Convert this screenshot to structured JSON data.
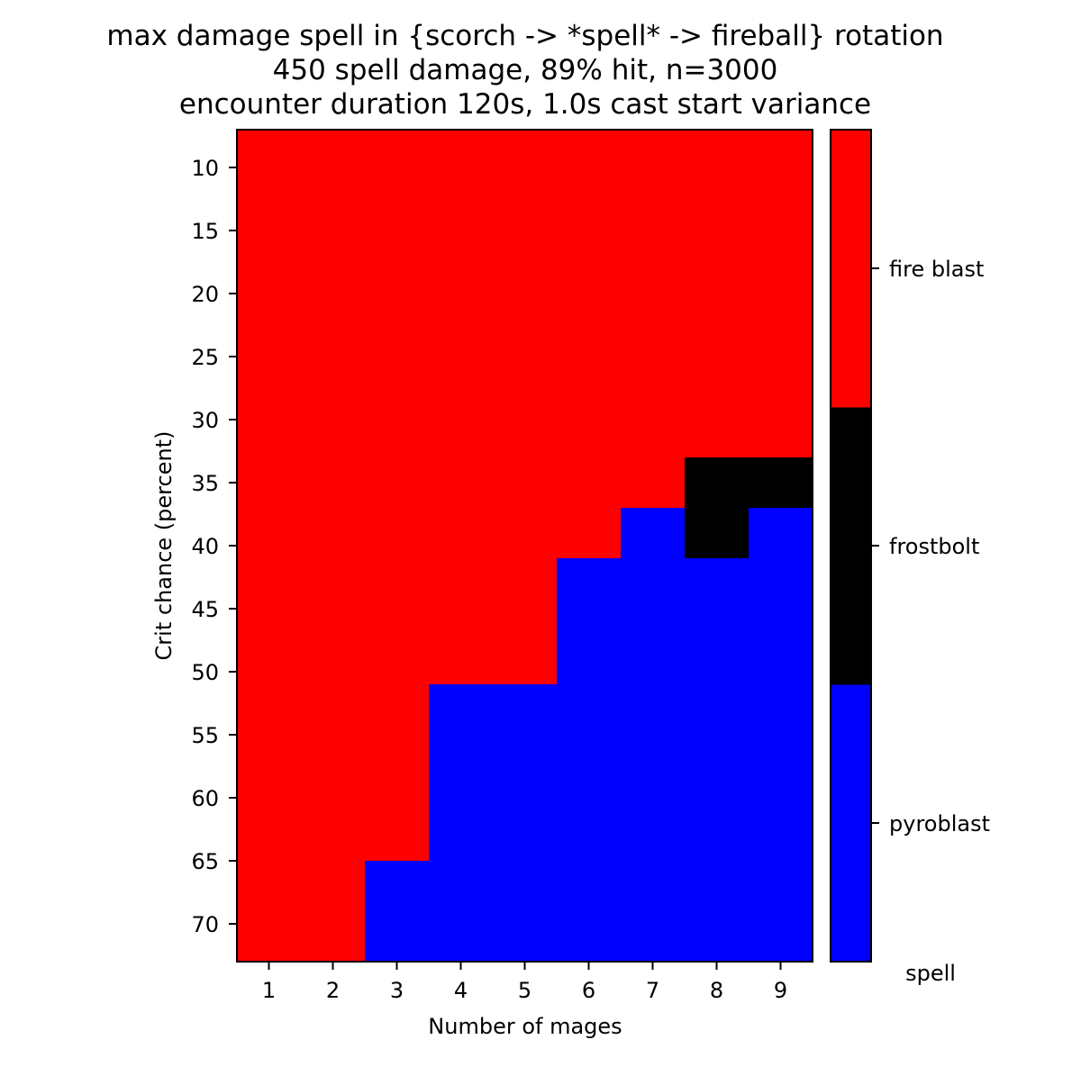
{
  "chart_data": {
    "type": "heatmap",
    "title_lines": [
      "max damage spell in {scorch -> *spell* -> fireball} rotation",
      "450  spell damage, 89% hit, n=3000",
      "encounter duration 120s, 1.0s cast start variance"
    ],
    "xlabel": "Number of mages",
    "ylabel": "Crit chance (percent)",
    "x": [
      1,
      2,
      3,
      4,
      5,
      6,
      7,
      8,
      9
    ],
    "y": [
      8,
      10,
      12,
      14,
      16,
      18,
      20,
      22,
      24,
      26,
      28,
      30,
      32,
      34,
      36,
      38,
      40,
      42,
      44,
      46,
      48,
      50,
      52,
      54,
      56,
      58,
      60,
      62,
      64,
      66,
      68,
      70,
      72
    ],
    "xticks": [
      1,
      2,
      3,
      4,
      5,
      6,
      7,
      8,
      9
    ],
    "yticks": [
      10,
      15,
      20,
      25,
      30,
      35,
      40,
      45,
      50,
      55,
      60,
      65,
      70
    ],
    "category_names": [
      "pyroblast",
      "frostbolt",
      "fire blast"
    ],
    "category_colors": [
      "#0000ff",
      "#000000",
      "#ff0000"
    ],
    "colorbar_label": "spell",
    "rows": [
      [
        2,
        2,
        2,
        2,
        2,
        2,
        2,
        2,
        2
      ],
      [
        2,
        2,
        2,
        2,
        2,
        2,
        2,
        2,
        2
      ],
      [
        2,
        2,
        2,
        2,
        2,
        2,
        2,
        2,
        2
      ],
      [
        2,
        2,
        2,
        2,
        2,
        2,
        2,
        2,
        2
      ],
      [
        2,
        2,
        2,
        2,
        2,
        2,
        2,
        2,
        2
      ],
      [
        2,
        2,
        2,
        2,
        2,
        2,
        2,
        2,
        2
      ],
      [
        2,
        2,
        2,
        2,
        2,
        2,
        2,
        2,
        2
      ],
      [
        2,
        2,
        2,
        2,
        2,
        2,
        2,
        2,
        2
      ],
      [
        2,
        2,
        2,
        2,
        2,
        2,
        2,
        2,
        2
      ],
      [
        2,
        2,
        2,
        2,
        2,
        2,
        2,
        2,
        2
      ],
      [
        2,
        2,
        2,
        2,
        2,
        2,
        2,
        2,
        2
      ],
      [
        2,
        2,
        2,
        2,
        2,
        2,
        2,
        2,
        2
      ],
      [
        2,
        2,
        2,
        2,
        2,
        2,
        2,
        2,
        2
      ],
      [
        2,
        2,
        2,
        2,
        2,
        2,
        2,
        1,
        1
      ],
      [
        2,
        2,
        2,
        2,
        2,
        2,
        2,
        1,
        1
      ],
      [
        2,
        2,
        2,
        2,
        2,
        2,
        0,
        1,
        0
      ],
      [
        2,
        2,
        2,
        2,
        2,
        2,
        0,
        1,
        0
      ],
      [
        2,
        2,
        2,
        2,
        2,
        0,
        0,
        0,
        0
      ],
      [
        2,
        2,
        2,
        2,
        2,
        0,
        0,
        0,
        0
      ],
      [
        2,
        2,
        2,
        2,
        2,
        0,
        0,
        0,
        0
      ],
      [
        2,
        2,
        2,
        2,
        2,
        0,
        0,
        0,
        0
      ],
      [
        2,
        2,
        2,
        2,
        2,
        0,
        0,
        0,
        0
      ],
      [
        2,
        2,
        2,
        0,
        0,
        0,
        0,
        0,
        0
      ],
      [
        2,
        2,
        2,
        0,
        0,
        0,
        0,
        0,
        0
      ],
      [
        2,
        2,
        2,
        0,
        0,
        0,
        0,
        0,
        0
      ],
      [
        2,
        2,
        2,
        0,
        0,
        0,
        0,
        0,
        0
      ],
      [
        2,
        2,
        2,
        0,
        0,
        0,
        0,
        0,
        0
      ],
      [
        2,
        2,
        2,
        0,
        0,
        0,
        0,
        0,
        0
      ],
      [
        2,
        2,
        2,
        0,
        0,
        0,
        0,
        0,
        0
      ],
      [
        2,
        2,
        0,
        0,
        0,
        0,
        0,
        0,
        0
      ],
      [
        2,
        2,
        0,
        0,
        0,
        0,
        0,
        0,
        0
      ],
      [
        2,
        2,
        0,
        0,
        0,
        0,
        0,
        0,
        0
      ],
      [
        2,
        2,
        0,
        0,
        0,
        0,
        0,
        0,
        0
      ]
    ]
  }
}
